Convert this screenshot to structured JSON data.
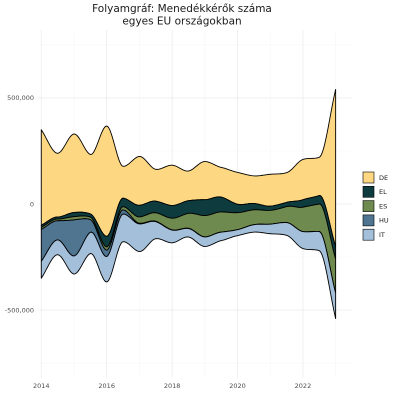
{
  "chart_data": {
    "type": "area",
    "subtype": "streamgraph",
    "title_lines": [
      "Folyamgráf: Menedékkérők száma",
      "egyes EU országokban"
    ],
    "xlabel": "",
    "ylabel": "",
    "x_ticks": [
      "2014",
      "2016",
      "2018",
      "2020",
      "2022"
    ],
    "x_tick_values": [
      2014,
      2016,
      2018,
      2020,
      2022
    ],
    "y_ticks": [
      "-500,000",
      "0",
      "500,000"
    ],
    "y_tick_values": [
      -500000,
      0,
      500000
    ],
    "xlim": [
      2013.9,
      2023.5
    ],
    "ylim": [
      -820000,
      820000
    ],
    "grid": true,
    "legend_position": "right",
    "x": [
      2014.0,
      2014.5,
      2015.0,
      2015.5,
      2016.0,
      2016.5,
      2017.0,
      2017.5,
      2018.0,
      2018.5,
      2019.0,
      2019.5,
      2020.0,
      2020.5,
      2021.0,
      2021.5,
      2022.0,
      2022.5,
      2023.0
    ],
    "series": [
      {
        "name": "DE",
        "color": "#FDD782",
        "values": [
          450000,
          300000,
          370000,
          280000,
          520000,
          150000,
          230000,
          150000,
          190000,
          140000,
          180000,
          140000,
          150000,
          130000,
          150000,
          140000,
          190000,
          180000,
          740000
        ]
      },
      {
        "name": "EL",
        "color": "#0D3B3E",
        "values": [
          10000,
          10000,
          20000,
          15000,
          50000,
          40000,
          55000,
          55000,
          60000,
          60000,
          75000,
          70000,
          40000,
          30000,
          20000,
          20000,
          35000,
          40000,
          60000
        ]
      },
      {
        "name": "ES",
        "color": "#6F8A4E",
        "values": [
          10000,
          8000,
          15000,
          12000,
          15000,
          15000,
          30000,
          40000,
          55000,
          70000,
          100000,
          95000,
          80000,
          70000,
          65000,
          75000,
          115000,
          130000,
          160000
        ]
      },
      {
        "name": "HU",
        "color": "#4F7591",
        "values": [
          150000,
          90000,
          170000,
          60000,
          30000,
          20000,
          3000,
          2000,
          1000,
          1000,
          500,
          300,
          100,
          50,
          50,
          50,
          50,
          30,
          30
        ]
      },
      {
        "name": "IT",
        "color": "#A3BFD9",
        "values": [
          80000,
          70000,
          85000,
          100000,
          120000,
          130000,
          130000,
          80000,
          60000,
          40000,
          45000,
          40000,
          28000,
          35000,
          45000,
          60000,
          80000,
          90000,
          120000
        ]
      }
    ]
  }
}
